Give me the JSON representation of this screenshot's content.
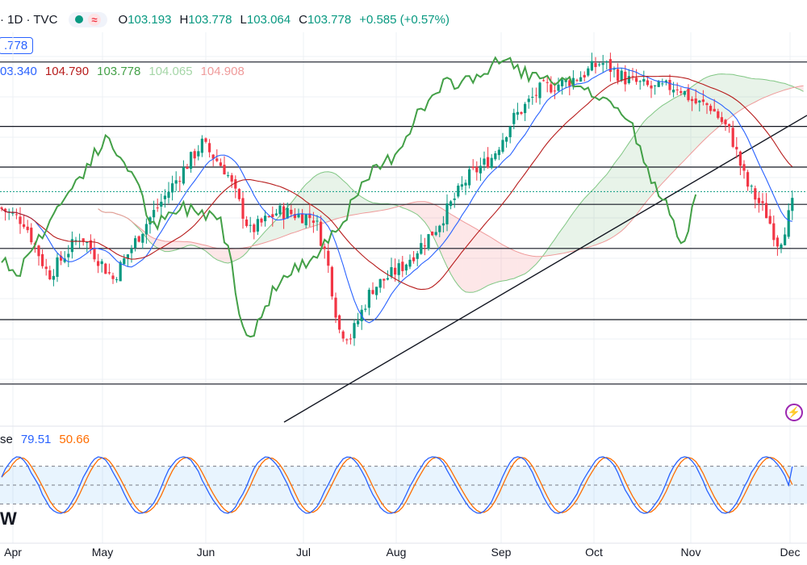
{
  "header": {
    "symbol": "· 1D · TVC",
    "approx": "≈",
    "ohlc": [
      {
        "label": "O",
        "value": "103.193"
      },
      {
        "label": "H",
        "value": "103.778"
      },
      {
        "label": "L",
        "value": "103.064"
      },
      {
        "label": "C",
        "value": "103.778"
      }
    ],
    "change": "+0.585 (+0.57%)"
  },
  "price_label": ".778",
  "ichimoku_values": [
    {
      "value": "03.340",
      "color": "#2962ff"
    },
    {
      "value": "104.790",
      "color": "#b71c1c"
    },
    {
      "value": "103.778",
      "color": "#43a047"
    },
    {
      "value": "104.065",
      "color": "#a5d6a7"
    },
    {
      "value": "104.908",
      "color": "#ef9a9a"
    }
  ],
  "stoch": {
    "name": "se",
    "k": "79.51",
    "d": "50.66",
    "k_color": "#2962ff",
    "d_color": "#ff6d00"
  },
  "watermark": "W",
  "colors": {
    "up": "#089981",
    "down": "#f23645",
    "tenkan": "#2962ff",
    "kijun": "#b71c1c",
    "chikou": "#43a047"
  },
  "chart_data": {
    "type": "candlestick",
    "x_ticks": [
      "Apr",
      "May",
      "Jun",
      "Jul",
      "Aug",
      "Sep",
      "Oct",
      "Nov",
      "Dec"
    ],
    "horizontal_levels": [
      107.6,
      105.7,
      104.5,
      103.4,
      102.1,
      100.0,
      98.1
    ],
    "last_close": 103.778,
    "ohlc_sample": {
      "open": 103.193,
      "high": 103.778,
      "low": 103.064,
      "close": 103.778
    },
    "indicators": [
      "Ichimoku Cloud",
      "Stochastic"
    ],
    "stochastic": {
      "k": 79.51,
      "d": 50.66,
      "levels": [
        80,
        50,
        20
      ]
    }
  }
}
